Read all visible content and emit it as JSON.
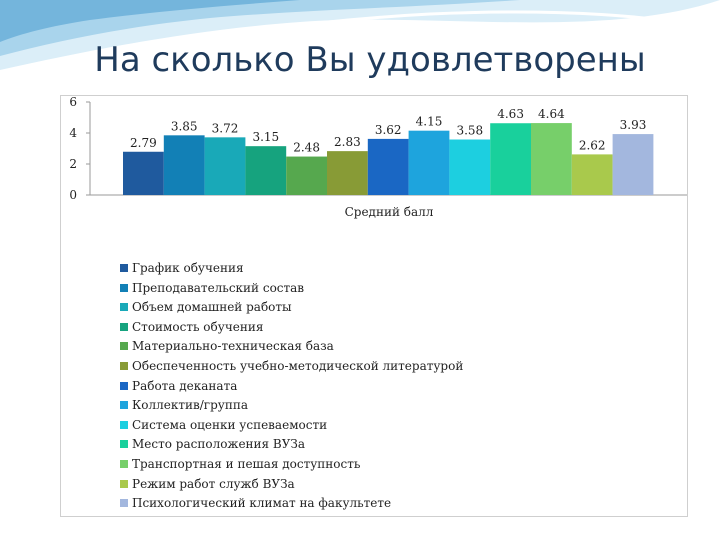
{
  "title": "На сколько Вы удовлетворены",
  "colors": {
    "title": "#1f3b5c",
    "swoosh_light": "#dbeef8",
    "swoosh_mid": "#a9d4ec",
    "swoosh_dark": "#74b5dc"
  },
  "chart_data": {
    "type": "bar",
    "xlabel": "Средний балл",
    "ylabel": "",
    "ylim": [
      0,
      6
    ],
    "yticks": [
      0,
      2,
      4,
      6
    ],
    "grid": false,
    "legend_position": "bottom",
    "categories": [
      "Средний балл"
    ],
    "series": [
      {
        "name": "График обучения",
        "values": [
          2.79
        ],
        "label": "2.79",
        "color": "#1f5a9e"
      },
      {
        "name": "Преподавательский состав",
        "values": [
          3.85
        ],
        "label": "3.85",
        "color": "#1280b6"
      },
      {
        "name": "Объем домашней работы",
        "values": [
          3.72
        ],
        "label": "3.72",
        "color": "#19a9b8"
      },
      {
        "name": "Стоимость обучения",
        "values": [
          3.15
        ],
        "label": "3.15",
        "color": "#16a37e"
      },
      {
        "name": "Материально-техническая база",
        "values": [
          2.48
        ],
        "label": "2.48",
        "color": "#56a84e"
      },
      {
        "name": "Обеспеченность учебно-методической литературой",
        "values": [
          2.83
        ],
        "label": "2.83",
        "color": "#889b36"
      },
      {
        "name": "Работа деканата",
        "values": [
          3.62
        ],
        "label": "3.62",
        "color": "#1a67c4"
      },
      {
        "name": "Коллектив/группа",
        "values": [
          4.15
        ],
        "label": "4.15",
        "color": "#1ea4dd"
      },
      {
        "name": "Система оценки успеваемости",
        "values": [
          3.58
        ],
        "label": "3.58",
        "color": "#1dcfe0"
      },
      {
        "name": "Место расположения ВУЗа",
        "values": [
          4.63
        ],
        "label": "4.63",
        "color": "#19d09c"
      },
      {
        "name": "Транспортная и пешая доступность",
        "values": [
          4.64
        ],
        "label": "4.64",
        "color": "#77cf6a"
      },
      {
        "name": "Режим работ служб ВУЗа",
        "values": [
          2.62
        ],
        "label": "2.62",
        "color": "#a9c94c"
      },
      {
        "name": "Психологический климат на факультете",
        "values": [
          3.93
        ],
        "label": "3.93",
        "color": "#a3b7de"
      }
    ]
  }
}
